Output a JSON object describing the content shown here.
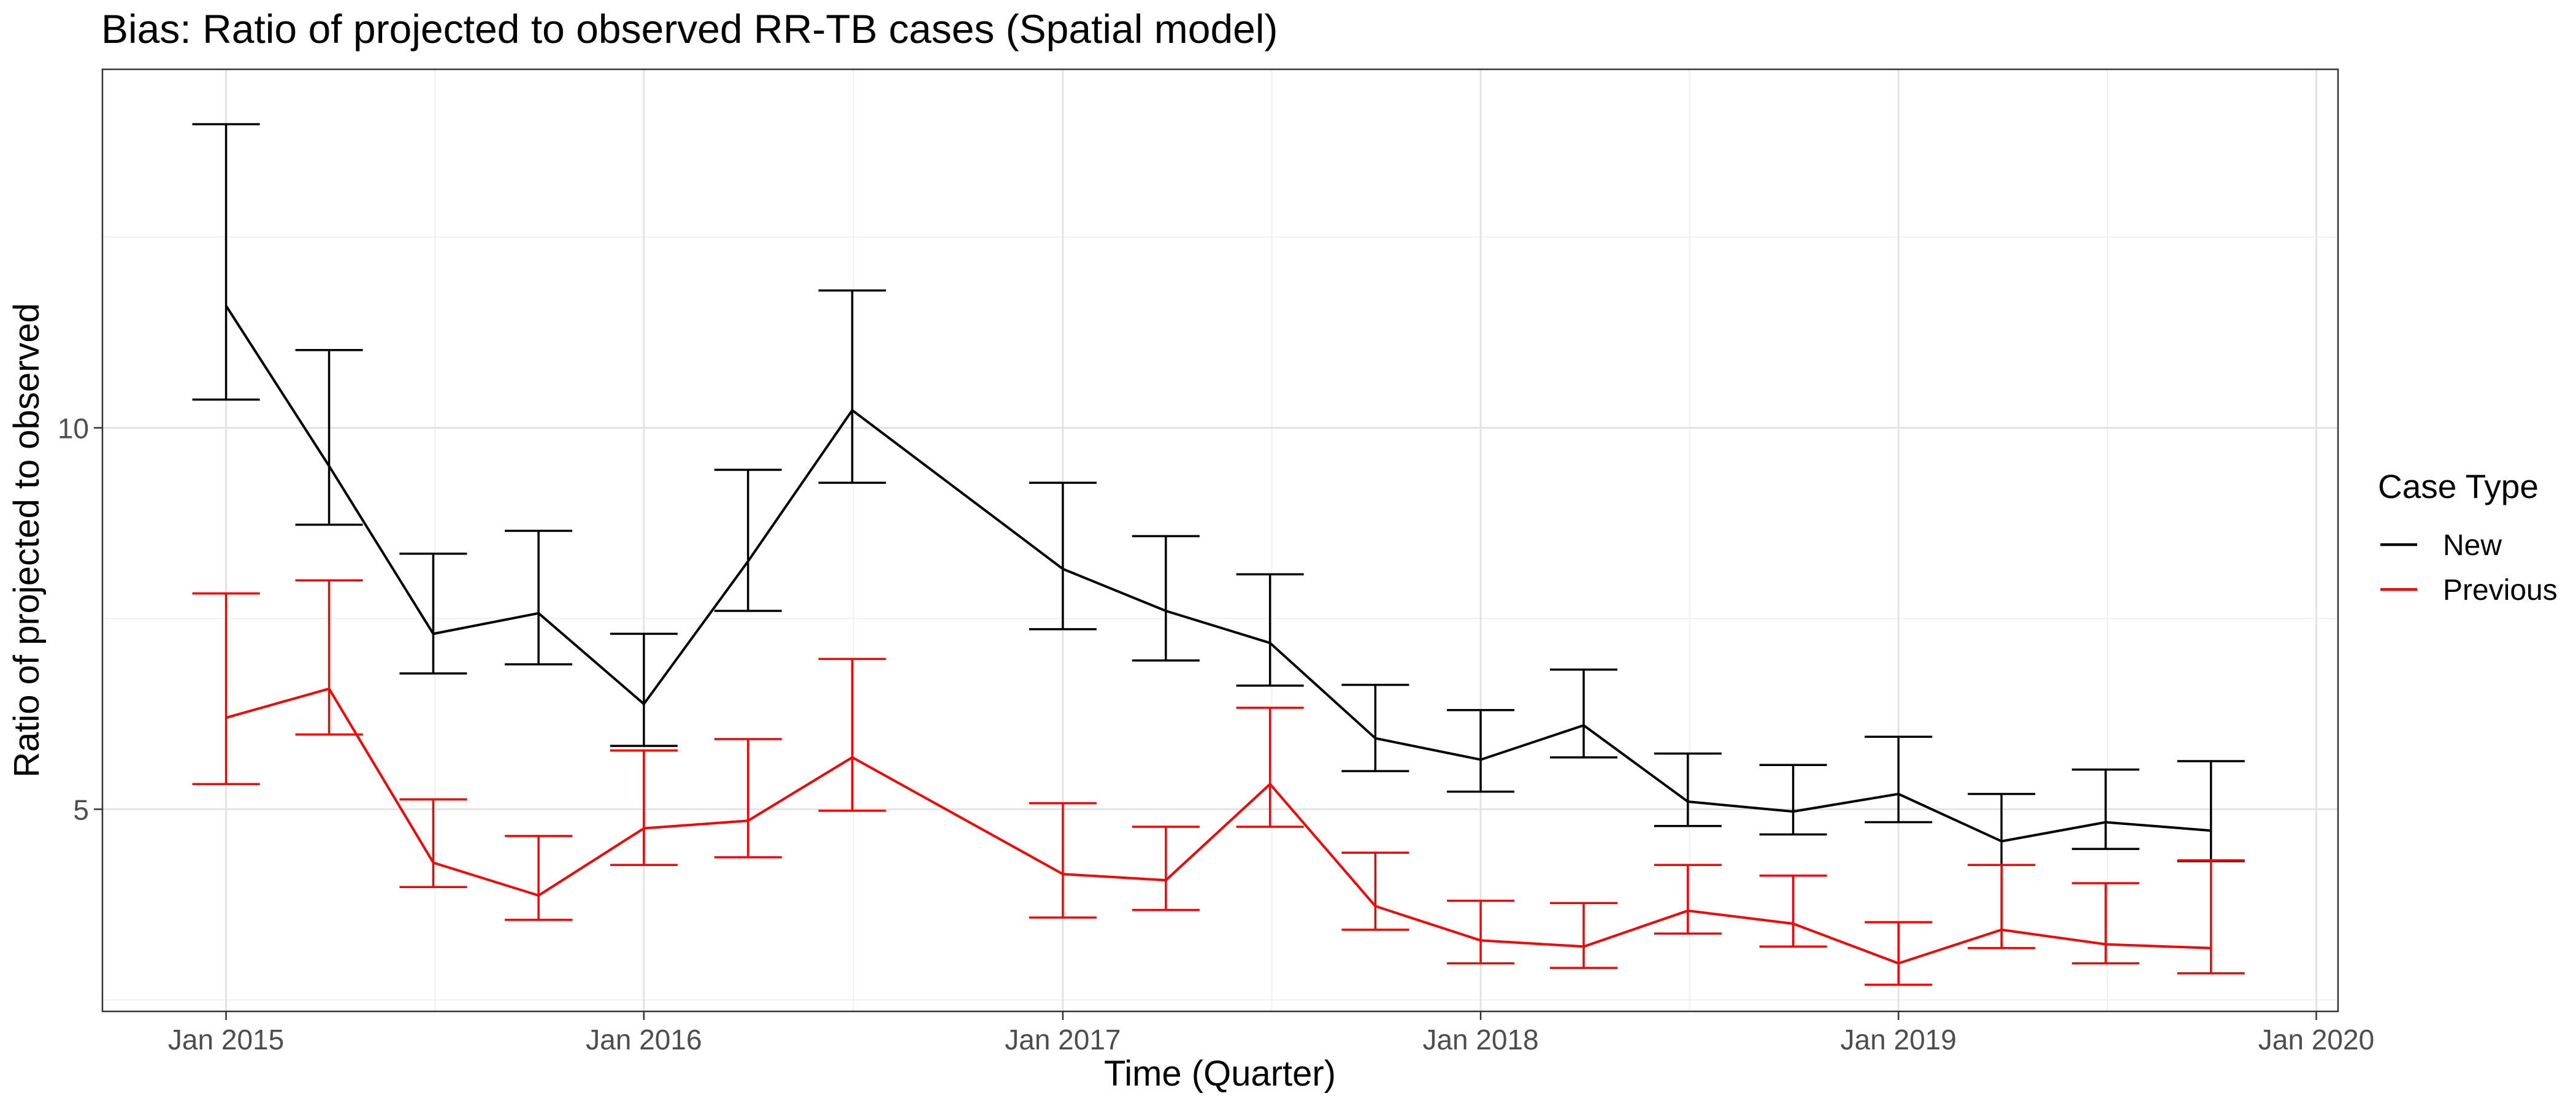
{
  "chart_data": {
    "type": "line",
    "title": "Bias: Ratio of projected to observed RR-TB cases (Spatial model)",
    "xlabel": "Time (Quarter)",
    "ylabel": "Ratio of projected to observed",
    "x": [
      "2015-01-01",
      "2015-04-01",
      "2015-07-01",
      "2015-10-01",
      "2016-01-01",
      "2016-04-01",
      "2016-07-01",
      "2017-01-01",
      "2017-04-01",
      "2017-07-01",
      "2017-10-01",
      "2018-01-01",
      "2018-04-01",
      "2018-07-01",
      "2018-10-01",
      "2019-01-01",
      "2019-04-01",
      "2019-07-01",
      "2019-10-01"
    ],
    "x_ticks": [
      {
        "date": "2015-01-01",
        "label": "Jan 2015"
      },
      {
        "date": "2016-01-01",
        "label": "Jan 2016"
      },
      {
        "date": "2017-01-01",
        "label": "Jan 2017"
      },
      {
        "date": "2018-01-01",
        "label": "Jan 2018"
      },
      {
        "date": "2019-01-01",
        "label": "Jan 2019"
      },
      {
        "date": "2020-01-01",
        "label": "Jan 2020"
      }
    ],
    "xlim": [
      "2014-09-15",
      "2020-01-20"
    ],
    "y_ticks": [
      5,
      10
    ],
    "ylim": [
      2.35,
      14.7
    ],
    "grid": true,
    "series": [
      {
        "name": "New",
        "color": "#000000",
        "values": [
          11.6,
          9.5,
          7.3,
          7.57,
          6.38,
          8.25,
          10.23,
          8.15,
          7.6,
          7.18,
          5.93,
          5.65,
          6.1,
          5.1,
          4.97,
          5.2,
          4.58,
          4.83,
          4.72
        ],
        "lower": [
          10.37,
          8.73,
          6.78,
          6.9,
          5.83,
          7.6,
          9.28,
          7.36,
          6.95,
          6.62,
          5.5,
          5.23,
          5.68,
          4.78,
          4.67,
          4.83,
          4.27,
          4.48,
          4.32
        ],
        "upper": [
          13.98,
          11.02,
          8.35,
          8.65,
          7.3,
          9.45,
          11.8,
          9.28,
          8.58,
          8.08,
          6.63,
          6.3,
          6.83,
          5.73,
          5.58,
          5.95,
          5.2,
          5.52,
          5.63
        ]
      },
      {
        "name": "Previous",
        "color": "#ff0000",
        "values": [
          6.2,
          6.58,
          4.3,
          3.87,
          4.75,
          4.85,
          5.68,
          4.15,
          4.07,
          5.33,
          3.73,
          3.28,
          3.2,
          3.67,
          3.5,
          2.98,
          3.42,
          3.23,
          3.18
        ],
        "lower": [
          5.33,
          5.98,
          3.98,
          3.55,
          4.27,
          4.37,
          4.98,
          3.58,
          3.68,
          4.77,
          3.42,
          2.98,
          2.92,
          3.37,
          3.2,
          2.7,
          3.18,
          2.98,
          2.85
        ],
        "upper": [
          7.83,
          8.0,
          5.13,
          4.65,
          5.77,
          5.92,
          6.97,
          5.08,
          4.77,
          6.33,
          4.43,
          3.8,
          3.77,
          4.27,
          4.13,
          3.52,
          4.27,
          4.03,
          4.33
        ]
      }
    ],
    "legend": {
      "title": "Case Type",
      "placement": "right",
      "entries": [
        "New",
        "Previous"
      ]
    }
  }
}
